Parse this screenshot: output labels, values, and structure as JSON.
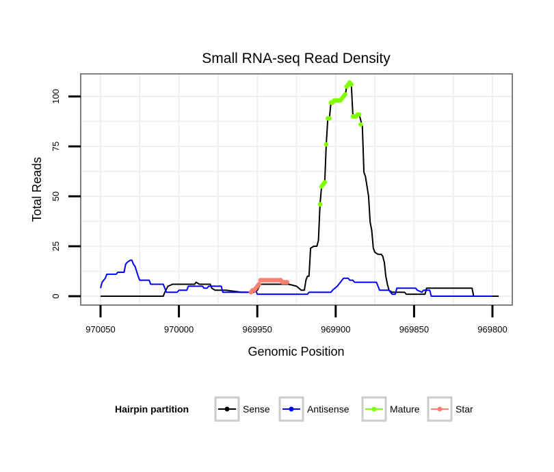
{
  "chart_data": {
    "type": "line",
    "title": "Small RNA-seq Read Density",
    "xlabel": "Genomic Position",
    "ylabel": "Total Reads",
    "xlim": [
      970050,
      969800
    ],
    "ylim": [
      -5,
      111
    ],
    "x_reversed": true,
    "grid": true,
    "x_ticks": [
      970050,
      970000,
      969950,
      969900,
      969850,
      969800
    ],
    "x_tick_labels": [
      "970050",
      "970000",
      "969950",
      "969900",
      "969850",
      "969800"
    ],
    "y_ticks": [
      0,
      25,
      50,
      75,
      100
    ],
    "y_tick_labels": [
      "0",
      "25",
      "50",
      "75",
      "100"
    ],
    "legend": {
      "title": "Hairpin partition",
      "placement": "bottom",
      "entries": [
        {
          "name": "Sense",
          "color": "#000000"
        },
        {
          "name": "Antisense",
          "color": "#0000ff"
        },
        {
          "name": "Mature",
          "color": "#7fff00"
        },
        {
          "name": "Star",
          "color": "#fa8072"
        }
      ]
    },
    "series": [
      {
        "name": "Sense",
        "color": "#000000",
        "style": "line",
        "points": [
          [
            970050,
            0
          ],
          [
            970010,
            0
          ],
          [
            970009,
            2
          ],
          [
            970007,
            5
          ],
          [
            970004,
            6
          ],
          [
            969990,
            6
          ],
          [
            969989,
            7
          ],
          [
            969987,
            6
          ],
          [
            969980,
            6
          ],
          [
            969979,
            4
          ],
          [
            969977,
            3
          ],
          [
            969970,
            3
          ],
          [
            969960,
            2
          ],
          [
            969952,
            2
          ],
          [
            969950,
            3
          ],
          [
            969948,
            6
          ],
          [
            969940,
            6
          ],
          [
            969930,
            6
          ],
          [
            969925,
            5
          ],
          [
            969922,
            3
          ],
          [
            969920,
            3
          ],
          [
            969919,
            8
          ],
          [
            969918,
            10
          ],
          [
            969917,
            10
          ],
          [
            969916,
            24
          ],
          [
            969914,
            25
          ],
          [
            969912,
            25
          ],
          [
            969911,
            28
          ],
          [
            969910,
            46
          ],
          [
            969909,
            55
          ],
          [
            969908,
            56
          ],
          [
            969907,
            57
          ],
          [
            969906,
            76
          ],
          [
            969905,
            89
          ],
          [
            969904,
            89
          ],
          [
            969903,
            97
          ],
          [
            969900,
            98
          ],
          [
            969897,
            98
          ],
          [
            969895,
            100
          ],
          [
            969894,
            100
          ],
          [
            969893,
            105
          ],
          [
            969891,
            107
          ],
          [
            969890,
            106
          ],
          [
            969889,
            90
          ],
          [
            969887,
            90
          ],
          [
            969885,
            91
          ],
          [
            969884,
            88
          ],
          [
            969883,
            85
          ],
          [
            969882,
            62
          ],
          [
            969881,
            60
          ],
          [
            969879,
            50
          ],
          [
            969878,
            37
          ],
          [
            969877,
            33
          ],
          [
            969876,
            24
          ],
          [
            969875,
            22
          ],
          [
            969873,
            21
          ],
          [
            969871,
            21
          ],
          [
            969870,
            20
          ],
          [
            969869,
            17
          ],
          [
            969868,
            10
          ],
          [
            969867,
            6
          ],
          [
            969866,
            3
          ],
          [
            969864,
            2
          ],
          [
            969856,
            2
          ],
          [
            969855,
            1
          ],
          [
            969845,
            1
          ],
          [
            969843,
            1
          ],
          [
            969842,
            4
          ],
          [
            969835,
            4
          ],
          [
            969815,
            4
          ],
          [
            969813,
            4
          ],
          [
            969812,
            0
          ],
          [
            969796,
            0
          ]
        ]
      },
      {
        "name": "Antisense",
        "color": "#0000ff",
        "style": "line",
        "points": [
          [
            970050,
            4
          ],
          [
            970049,
            7
          ],
          [
            970047,
            9
          ],
          [
            970046,
            11
          ],
          [
            970040,
            11
          ],
          [
            970039,
            12
          ],
          [
            970035,
            12
          ],
          [
            970034,
            16
          ],
          [
            970033,
            17
          ],
          [
            970031,
            18
          ],
          [
            970030,
            18
          ],
          [
            970029,
            16
          ],
          [
            970028,
            15
          ],
          [
            970026,
            10
          ],
          [
            970025,
            8
          ],
          [
            970019,
            8
          ],
          [
            970018,
            6
          ],
          [
            970010,
            6
          ],
          [
            970008,
            2
          ],
          [
            970001,
            2
          ],
          [
            970000,
            3
          ],
          [
            969995,
            3
          ],
          [
            969994,
            5
          ],
          [
            969985,
            5
          ],
          [
            969984,
            4
          ],
          [
            969982,
            4
          ],
          [
            969981,
            5
          ],
          [
            969973,
            5
          ],
          [
            969972,
            2
          ],
          [
            969955,
            2
          ],
          [
            969954,
            3
          ],
          [
            969951,
            3
          ],
          [
            969950,
            1
          ],
          [
            969920,
            1
          ],
          [
            969918,
            1
          ],
          [
            969917,
            2
          ],
          [
            969903,
            2
          ],
          [
            969902,
            3
          ],
          [
            969899,
            5
          ],
          [
            969897,
            7
          ],
          [
            969895,
            9
          ],
          [
            969892,
            9
          ],
          [
            969891,
            8
          ],
          [
            969889,
            8
          ],
          [
            969888,
            7
          ],
          [
            969874,
            7
          ],
          [
            969873,
            5
          ],
          [
            969872,
            3
          ],
          [
            969866,
            3
          ],
          [
            969864,
            1
          ],
          [
            969862,
            1
          ],
          [
            969861,
            4
          ],
          [
            969849,
            4
          ],
          [
            969848,
            3
          ],
          [
            969845,
            2
          ],
          [
            969844,
            3
          ],
          [
            969840,
            3
          ],
          [
            969839,
            0
          ],
          [
            969800,
            0
          ]
        ]
      },
      {
        "name": "Mature",
        "color": "#7fff00",
        "style": "points",
        "points": [
          [
            969910,
            46
          ],
          [
            969909,
            55
          ],
          [
            969908,
            56
          ],
          [
            969907,
            57
          ],
          [
            969906,
            76
          ],
          [
            969905,
            89
          ],
          [
            969904,
            89
          ],
          [
            969903,
            97
          ],
          [
            969902,
            97
          ],
          [
            969901,
            98
          ],
          [
            969900,
            98
          ],
          [
            969899,
            98
          ],
          [
            969898,
            98
          ],
          [
            969897,
            98
          ],
          [
            969896,
            99
          ],
          [
            969895,
            100
          ],
          [
            969894,
            101
          ],
          [
            969893,
            105
          ],
          [
            969892,
            106
          ],
          [
            969891,
            107
          ],
          [
            969890,
            106
          ],
          [
            969889,
            90
          ],
          [
            969888,
            90
          ],
          [
            969887,
            90
          ],
          [
            969886,
            91
          ],
          [
            969885,
            91
          ],
          [
            969884,
            86
          ]
        ]
      },
      {
        "name": "Star",
        "color": "#fa8072",
        "style": "points",
        "points": [
          [
            969954,
            2
          ],
          [
            969953,
            3
          ],
          [
            969952,
            3
          ],
          [
            969951,
            4
          ],
          [
            969950,
            5
          ],
          [
            969949,
            6
          ],
          [
            969948,
            8
          ],
          [
            969947,
            8
          ],
          [
            969946,
            8
          ],
          [
            969945,
            8
          ],
          [
            969944,
            8
          ],
          [
            969943,
            8
          ],
          [
            969942,
            8
          ],
          [
            969941,
            8
          ],
          [
            969940,
            8
          ],
          [
            969939,
            8
          ],
          [
            969938,
            8
          ],
          [
            969937,
            8
          ],
          [
            969936,
            8
          ],
          [
            969935,
            8
          ],
          [
            969934,
            7
          ],
          [
            969933,
            7
          ],
          [
            969932,
            7
          ],
          [
            969931,
            7
          ]
        ]
      }
    ]
  }
}
